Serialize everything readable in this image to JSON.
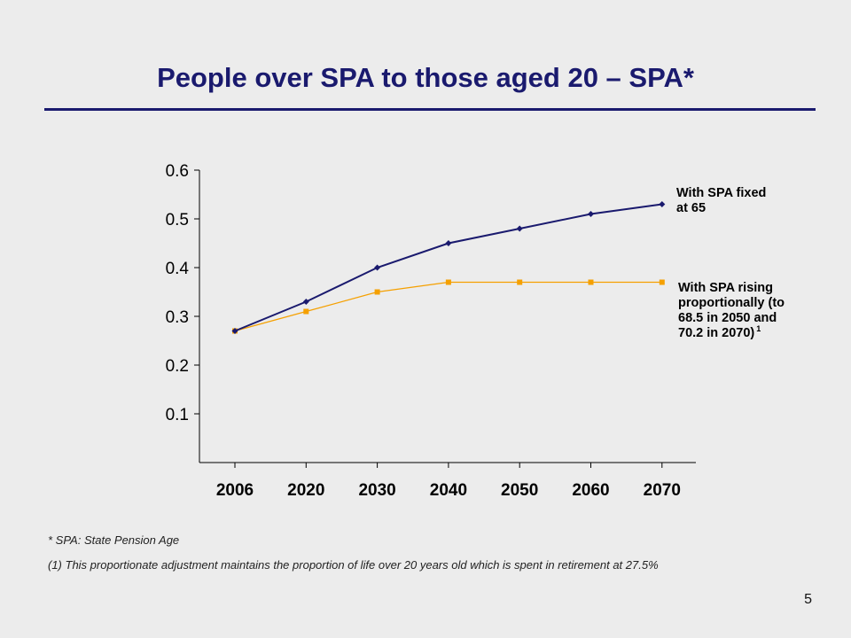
{
  "slide": {
    "title": "People over SPA to those aged 20 – SPA*",
    "footnotes": [
      "* SPA: State Pension Age",
      "(1) This proportionate adjustment maintains the proportion of life over 20 years old which is spent in retirement at 27.5%"
    ],
    "page_number": "5"
  },
  "colors": {
    "title": "#1a1a6e",
    "series_fixed": "#1a1a6e",
    "series_rising": "#f5a000"
  },
  "chart_data": {
    "type": "line",
    "title": "",
    "xlabel": "",
    "ylabel": "",
    "x": [
      "2006",
      "2020",
      "2030",
      "2040",
      "2050",
      "2060",
      "2070"
    ],
    "ylim": [
      0,
      0.6
    ],
    "yticks": [
      "0.1",
      "0.2",
      "0.3",
      "0.4",
      "0.5",
      "0.6"
    ],
    "grid": false,
    "series": [
      {
        "name": "With SPA fixed at 65",
        "label_lines": [
          "With SPA fixed",
          "at 65"
        ],
        "values": [
          0.27,
          0.33,
          0.4,
          0.45,
          0.48,
          0.51,
          0.53
        ]
      },
      {
        "name": "With SPA rising proportionally (to 68.5 in 2050 and 70.2 in 2070)",
        "label_lines": [
          "With SPA rising",
          "proportionally (to",
          "68.5 in 2050 and",
          "70.2 in 2070)"
        ],
        "superscript": "1",
        "values": [
          0.27,
          0.31,
          0.35,
          0.37,
          0.37,
          0.37,
          0.37
        ]
      }
    ]
  }
}
